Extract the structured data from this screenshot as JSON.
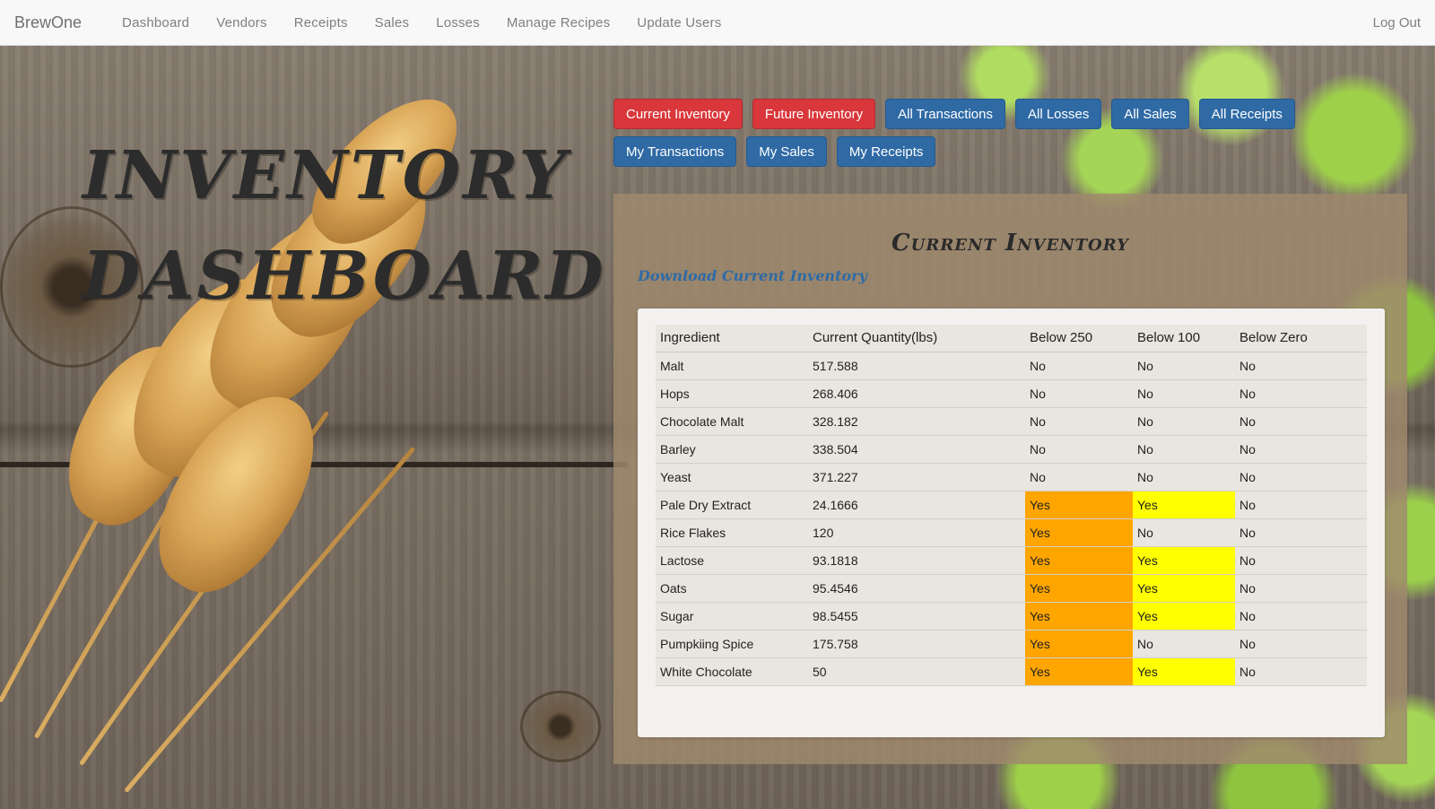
{
  "nav": {
    "brand": "BrewOne",
    "links": [
      "Dashboard",
      "Vendors",
      "Receipts",
      "Sales",
      "Losses",
      "Manage Recipes",
      "Update Users"
    ],
    "logout": "Log Out"
  },
  "hero": {
    "line1": "Inventory",
    "line2": "Dashboard"
  },
  "buttons": {
    "row1": [
      "Current Inventory",
      "Future Inventory",
      "All Transactions",
      "All Losses",
      "All Sales",
      "All Receipts"
    ],
    "row2": [
      "My Transactions",
      "My Sales",
      "My Receipts"
    ]
  },
  "panel": {
    "title": "Current Inventory",
    "download_link": "Download Current Inventory"
  },
  "table": {
    "headers": [
      "Ingredient",
      "Current Quantity(lbs)",
      "Below 250",
      "Below 100",
      "Below Zero"
    ],
    "rows": [
      [
        "Malt",
        "517.588",
        "No",
        "No",
        "No"
      ],
      [
        "Hops",
        "268.406",
        "No",
        "No",
        "No"
      ],
      [
        "Chocolate Malt",
        "328.182",
        "No",
        "No",
        "No"
      ],
      [
        "Barley",
        "338.504",
        "No",
        "No",
        "No"
      ],
      [
        "Yeast",
        "371.227",
        "No",
        "No",
        "No"
      ],
      [
        "Pale Dry Extract",
        "24.1666",
        "Yes",
        "Yes",
        "No"
      ],
      [
        "Rice Flakes",
        "120",
        "Yes",
        "No",
        "No"
      ],
      [
        "Lactose",
        "93.1818",
        "Yes",
        "Yes",
        "No"
      ],
      [
        "Oats",
        "95.4546",
        "Yes",
        "Yes",
        "No"
      ],
      [
        "Sugar",
        "98.5455",
        "Yes",
        "Yes",
        "No"
      ],
      [
        "Pumpkiing Spice",
        "175.758",
        "Yes",
        "No",
        "No"
      ],
      [
        "White Chocolate",
        "50",
        "Yes",
        "Yes",
        "No"
      ]
    ]
  },
  "colors": {
    "below_250_yes": "#ffa500",
    "below_100_yes": "#ffff00",
    "button_red": "#d9373b",
    "button_blue": "#2f6aa5"
  }
}
